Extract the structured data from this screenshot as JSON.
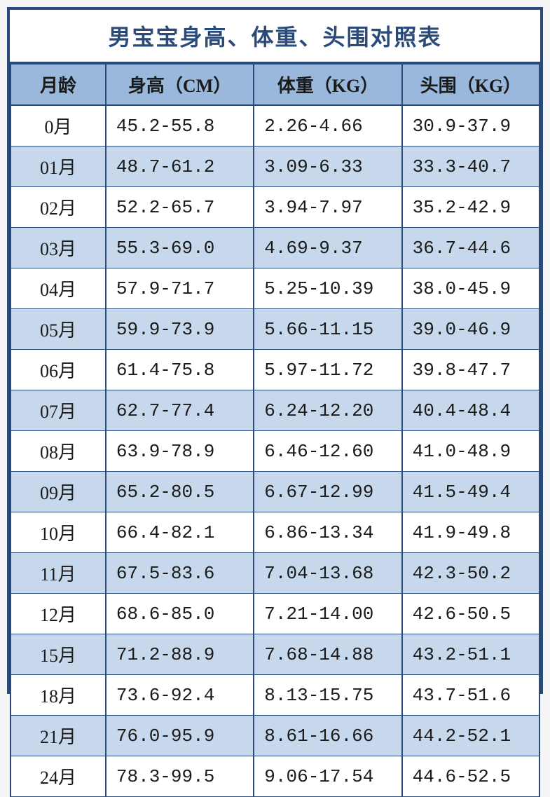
{
  "table": {
    "type": "table",
    "title": "男宝宝身高、体重、头围对照表",
    "columns": [
      {
        "label": "月龄",
        "class": "col-month"
      },
      {
        "label": "身高（CM）",
        "class": "col-height"
      },
      {
        "label": "体重（KG）",
        "class": "col-weight"
      },
      {
        "label": "头围（KG）",
        "class": "col-head"
      }
    ],
    "rows": [
      [
        "0月",
        "45.2-55.8",
        "2.26-4.66",
        "30.9-37.9"
      ],
      [
        "01月",
        "48.7-61.2",
        "3.09-6.33",
        "33.3-40.7"
      ],
      [
        "02月",
        "52.2-65.7",
        "3.94-7.97",
        "35.2-42.9"
      ],
      [
        "03月",
        "55.3-69.0",
        "4.69-9.37",
        "36.7-44.6"
      ],
      [
        "04月",
        "57.9-71.7",
        "5.25-10.39",
        "38.0-45.9"
      ],
      [
        "05月",
        "59.9-73.9",
        "5.66-11.15",
        "39.0-46.9"
      ],
      [
        "06月",
        "61.4-75.8",
        "5.97-11.72",
        "39.8-47.7"
      ],
      [
        "07月",
        "62.7-77.4",
        "6.24-12.20",
        "40.4-48.4"
      ],
      [
        "08月",
        "63.9-78.9",
        "6.46-12.60",
        "41.0-48.9"
      ],
      [
        "09月",
        "65.2-80.5",
        "6.67-12.99",
        "41.5-49.4"
      ],
      [
        "10月",
        "66.4-82.1",
        "6.86-13.34",
        "41.9-49.8"
      ],
      [
        "11月",
        "67.5-83.6",
        "7.04-13.68",
        "42.3-50.2"
      ],
      [
        "12月",
        "68.6-85.0",
        "7.21-14.00",
        "42.6-50.5"
      ],
      [
        "15月",
        "71.2-88.9",
        "7.68-14.88",
        "43.2-51.1"
      ],
      [
        "18月",
        "73.6-92.4",
        "8.13-15.75",
        "43.7-51.6"
      ],
      [
        "21月",
        "76.0-95.9",
        "8.61-16.66",
        "44.2-52.1"
      ],
      [
        "24月",
        "78.3-99.5",
        "9.06-17.54",
        "44.6-52.5"
      ]
    ],
    "colors": {
      "border": "#2a4a7a",
      "title_text": "#2a4a7a",
      "header_bg": "#9ab8dc",
      "row_even_bg": "#ffffff",
      "row_odd_bg": "#c8d8ec",
      "cell_text": "#1a1a1a"
    },
    "typography": {
      "title_fontsize": 32,
      "header_fontsize": 26,
      "cell_fontsize": 26,
      "title_weight": "bold",
      "header_weight": "bold"
    }
  }
}
